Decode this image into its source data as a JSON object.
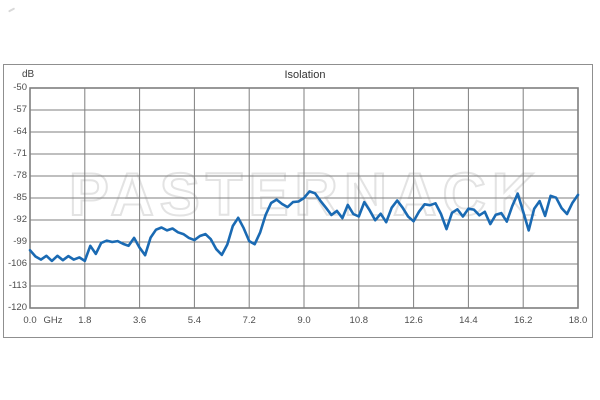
{
  "panel": {
    "title": "Isolation",
    "y_unit_label": "dB",
    "watermark": "PASTERNACK"
  },
  "colors": {
    "line": "#1a6ab3",
    "grid": "#7f7f7f",
    "plot_border": "#7f7f7f",
    "panel_border": "#8f8f8f",
    "tick_text": "#4d4d4d",
    "watermark_outline": "#e3e3e3"
  },
  "chart_data": {
    "type": "line",
    "title": "Isolation",
    "xlabel": "GHz",
    "ylabel": "dB",
    "xlim": [
      0,
      18
    ],
    "ylim": [
      -120,
      -50
    ],
    "grid": true,
    "legend": false,
    "x_ticks": [
      "0.0",
      "1.8",
      "3.6",
      "5.4",
      "7.2",
      "9.0",
      "10.8",
      "12.6",
      "14.4",
      "16.2",
      "18.0"
    ],
    "y_ticks": [
      "-50",
      "-57",
      "-64",
      "-71",
      "-78",
      "-85",
      "-92",
      "-99",
      "-106",
      "-113",
      "-120"
    ],
    "series": [
      {
        "name": "Isolation",
        "x": [
          0,
          0.18,
          0.36,
          0.54,
          0.72,
          0.9,
          1.08,
          1.26,
          1.44,
          1.62,
          1.8,
          1.98,
          2.16,
          2.34,
          2.52,
          2.7,
          2.88,
          3.06,
          3.24,
          3.42,
          3.6,
          3.78,
          3.96,
          4.14,
          4.32,
          4.5,
          4.68,
          4.86,
          5.04,
          5.22,
          5.4,
          5.58,
          5.76,
          5.94,
          6.12,
          6.3,
          6.48,
          6.66,
          6.84,
          7.02,
          7.2,
          7.38,
          7.56,
          7.74,
          7.92,
          8.1,
          8.28,
          8.46,
          8.64,
          8.82,
          9,
          9.18,
          9.36,
          9.54,
          9.72,
          9.9,
          10.08,
          10.26,
          10.44,
          10.62,
          10.8,
          10.98,
          11.16,
          11.34,
          11.52,
          11.7,
          11.88,
          12.06,
          12.24,
          12.42,
          12.6,
          12.78,
          12.96,
          13.14,
          13.32,
          13.5,
          13.68,
          13.86,
          14.04,
          14.22,
          14.4,
          14.58,
          14.76,
          14.94,
          15.12,
          15.3,
          15.48,
          15.66,
          15.84,
          16.02,
          16.2,
          16.38,
          16.56,
          16.74,
          16.92,
          17.1,
          17.28,
          17.46,
          17.64,
          17.82,
          18
        ],
        "y": [
          -101.6,
          -103.6,
          -104.6,
          -103.4,
          -105,
          -103.4,
          -104.8,
          -103.5,
          -104.6,
          -103.9,
          -105,
          -100.2,
          -102.8,
          -99.3,
          -98.6,
          -99,
          -98.7,
          -99.6,
          -100.2,
          -97.7,
          -100.8,
          -103.2,
          -97.6,
          -95.1,
          -94.4,
          -95.3,
          -94.7,
          -95.9,
          -96.5,
          -97.7,
          -98.4,
          -97.1,
          -96.5,
          -98.1,
          -101.3,
          -103.1,
          -99.8,
          -93.9,
          -91.3,
          -94.6,
          -98.7,
          -99.7,
          -95.9,
          -90.4,
          -86.6,
          -85.5,
          -86.9,
          -87.9,
          -86.3,
          -86.1,
          -85,
          -82.9,
          -83.5,
          -85.9,
          -88.1,
          -90.4,
          -89.1,
          -91.4,
          -87.2,
          -90.1,
          -90.9,
          -86.3,
          -89,
          -92.1,
          -90,
          -92.7,
          -88.1,
          -85.8,
          -88.1,
          -90.9,
          -92.4,
          -89.3,
          -87,
          -87.3,
          -86.7,
          -90.1,
          -94.9,
          -89.7,
          -88.6,
          -90.9,
          -88.4,
          -88.7,
          -90.5,
          -89.4,
          -93.3,
          -90.3,
          -89.8,
          -92.5,
          -87.6,
          -83.6,
          -89.4,
          -95.3,
          -88.4,
          -86,
          -90.7,
          -84.3,
          -84.9,
          -88.2,
          -90.1,
          -86.5,
          -84
        ]
      }
    ]
  }
}
